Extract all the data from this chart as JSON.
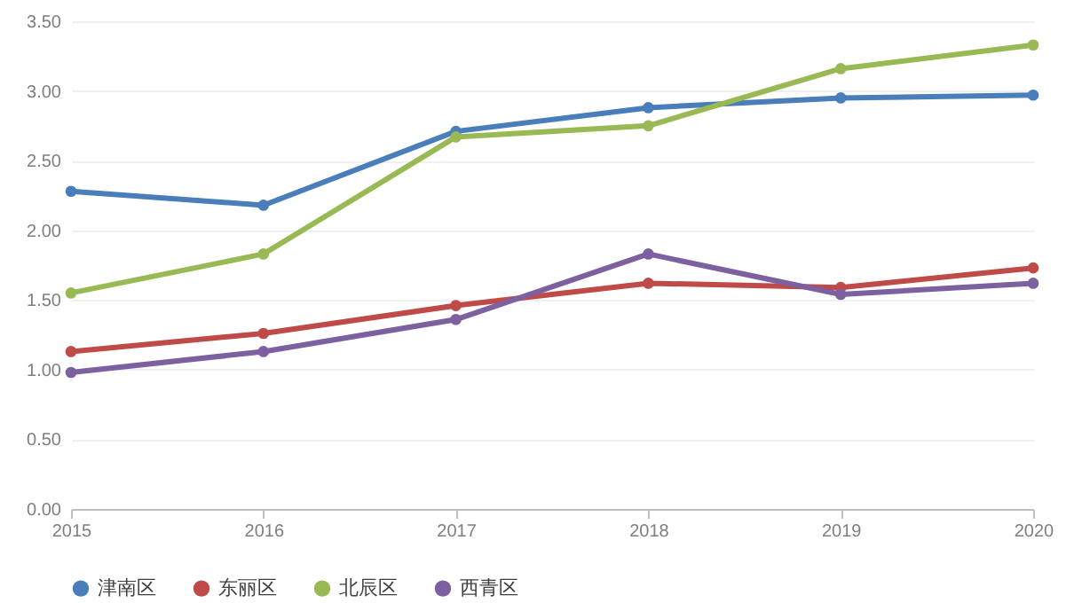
{
  "chart_data": {
    "type": "line",
    "categories": [
      "2015",
      "2016",
      "2017",
      "2018",
      "2019",
      "2020"
    ],
    "series": [
      {
        "name": "津南区",
        "color": "#4a7ebb",
        "values": [
          2.28,
          2.18,
          2.71,
          2.88,
          2.95,
          2.97
        ]
      },
      {
        "name": "东丽区",
        "color": "#be4b48",
        "values": [
          1.13,
          1.26,
          1.46,
          1.62,
          1.59,
          1.73
        ]
      },
      {
        "name": "北辰区",
        "color": "#98b954",
        "values": [
          1.55,
          1.83,
          2.67,
          2.75,
          3.16,
          3.33
        ]
      },
      {
        "name": "西青区",
        "color": "#7d60a0",
        "values": [
          0.98,
          1.13,
          1.36,
          1.83,
          1.54,
          1.62
        ]
      }
    ],
    "ylim": [
      0,
      3.5
    ],
    "yticks": [
      {
        "value": 0,
        "label": "0.00"
      },
      {
        "value": 0.5,
        "label": "0.50"
      },
      {
        "value": 1,
        "label": "1.00"
      },
      {
        "value": 1.5,
        "label": "1.50"
      },
      {
        "value": 2,
        "label": "2.00"
      },
      {
        "value": 2.5,
        "label": "2.50"
      },
      {
        "value": 3,
        "label": "3.00"
      },
      {
        "value": 3.5,
        "label": "3.50"
      }
    ],
    "grid": "y",
    "legend": "bottom",
    "marker": "circle",
    "line_style": "solid"
  }
}
